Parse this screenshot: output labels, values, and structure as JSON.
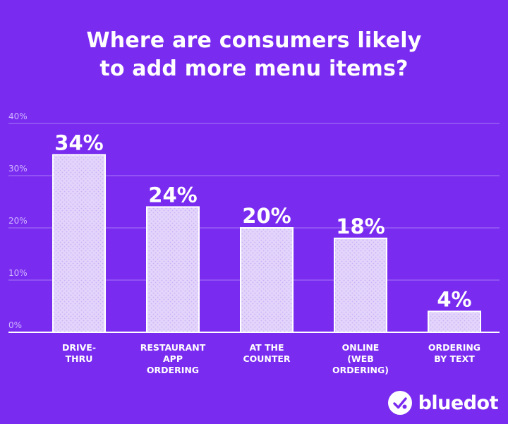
{
  "title_lines": [
    "Where are consumers likely",
    "to add more menu items?"
  ],
  "brand": {
    "name": "bluedot",
    "logo_icon": "bluedot-logo-icon"
  },
  "colors": {
    "background": "#7a2bf0",
    "bar_fill": "#e3d4fb",
    "bar_dot": "#c9b1f5",
    "grid": "#a57af5",
    "text": "#ffffff"
  },
  "chart_data": {
    "type": "bar",
    "title": "Where are consumers likely to add more menu items?",
    "categories": [
      [
        "DRIVE-",
        "THRU"
      ],
      [
        "RESTAURANT",
        "APP",
        "ORDERING"
      ],
      [
        "AT THE",
        "COUNTER"
      ],
      [
        "ONLINE",
        "(WEB",
        "ORDERING)"
      ],
      [
        "ORDERING",
        "BY TEXT"
      ]
    ],
    "values": [
      34,
      24,
      20,
      18,
      4
    ],
    "data_labels": [
      "34%",
      "24%",
      "20%",
      "18%",
      "4%"
    ],
    "y_ticks": [
      0,
      10,
      20,
      30,
      40
    ],
    "y_tick_labels": [
      "0%",
      "10%",
      "20%",
      "30%",
      "40%"
    ],
    "ylim": [
      0,
      40
    ],
    "grid": true,
    "legend": "none"
  }
}
